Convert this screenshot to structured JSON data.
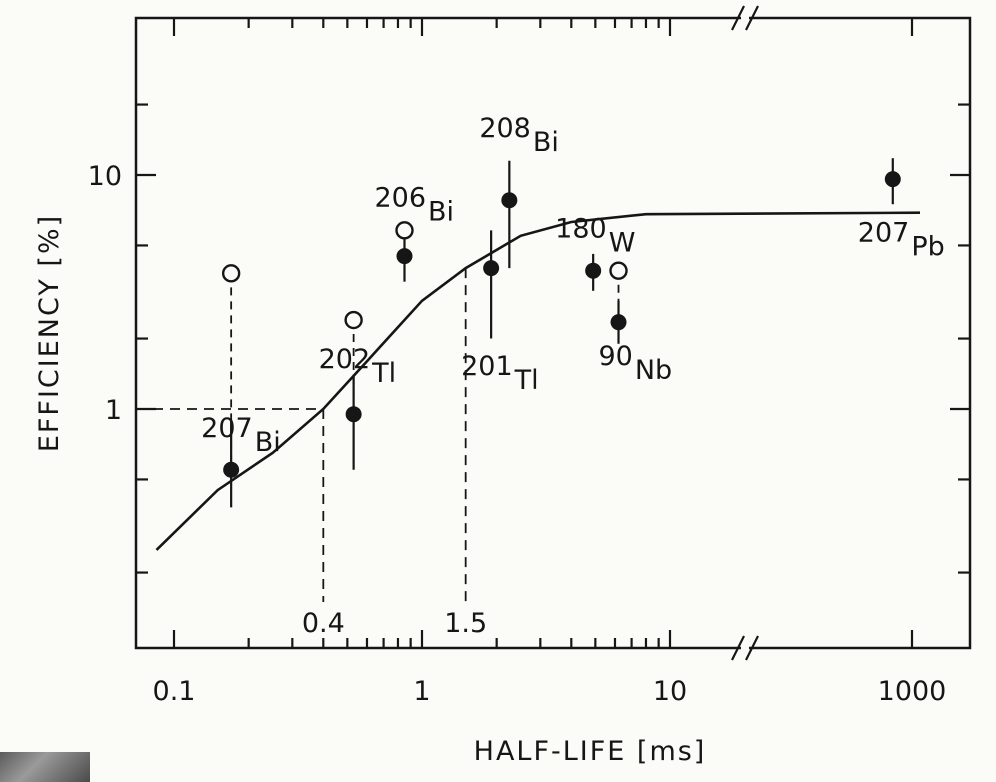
{
  "chart_data": {
    "type": "scatter",
    "title": "",
    "xlabel": "HALF-LIFE  [ms]",
    "ylabel": "EFFICIENCY  [%]",
    "x_scale": "log (axis broken between 10 and 1000)",
    "y_scale": "log",
    "xlim": [
      0.1,
      1000
    ],
    "ylim": [
      0.1,
      30
    ],
    "x_ticks": [
      "0.1",
      "1",
      "10",
      "1000"
    ],
    "y_ticks": [
      "1",
      "10"
    ],
    "reference_lines": [
      {
        "label": "0.4",
        "x": 0.4,
        "y": 1
      },
      {
        "label": "1.5",
        "x": 1.5,
        "y": 4
      }
    ],
    "curve": {
      "x": [
        0.085,
        0.15,
        0.25,
        0.4,
        0.6,
        1.0,
        1.5,
        2.5,
        4,
        8,
        1000
      ],
      "y": [
        0.25,
        0.45,
        0.65,
        1.0,
        1.6,
        2.9,
        4.0,
        5.5,
        6.3,
        6.8,
        6.9
      ]
    },
    "points": [
      {
        "isotope": "207",
        "element": "Bi",
        "x": 0.17,
        "filled": 0.55,
        "err": [
          0.38,
          0.9
        ],
        "open": 3.8,
        "label_side": "below"
      },
      {
        "isotope": "202",
        "element": "Tl",
        "x": 0.53,
        "filled": 0.95,
        "err": [
          0.55,
          1.4
        ],
        "open": 2.4,
        "label_side": "right"
      },
      {
        "isotope": "206",
        "element": "Bi",
        "x": 0.85,
        "filled": 4.5,
        "err": [
          3.5,
          5.6
        ],
        "open": 5.8,
        "label_side": "above"
      },
      {
        "isotope": "201",
        "element": "Tl",
        "x": 1.9,
        "filled": 4.0,
        "err": [
          2.0,
          5.8
        ],
        "open": null,
        "label_side": "below"
      },
      {
        "isotope": "208",
        "element": "Bi",
        "x": 2.25,
        "filled": 7.8,
        "err": [
          4.0,
          11.5
        ],
        "open": null,
        "label_side": "above"
      },
      {
        "isotope": "180",
        "element": "W",
        "x": 4.9,
        "filled": 3.9,
        "err": [
          3.2,
          4.6
        ],
        "open": null,
        "label_side": "above"
      },
      {
        "isotope": "90",
        "element": "Nb",
        "x": 6.2,
        "filled": 2.35,
        "err": [
          1.9,
          2.9
        ],
        "open": 3.9,
        "label_side": "below"
      },
      {
        "isotope": "207",
        "element": "Pb",
        "x": 700,
        "filled": 9.6,
        "err": [
          7.5,
          11.8
        ],
        "open": null,
        "label_side": "below"
      }
    ],
    "grid": false,
    "legend": "none"
  }
}
